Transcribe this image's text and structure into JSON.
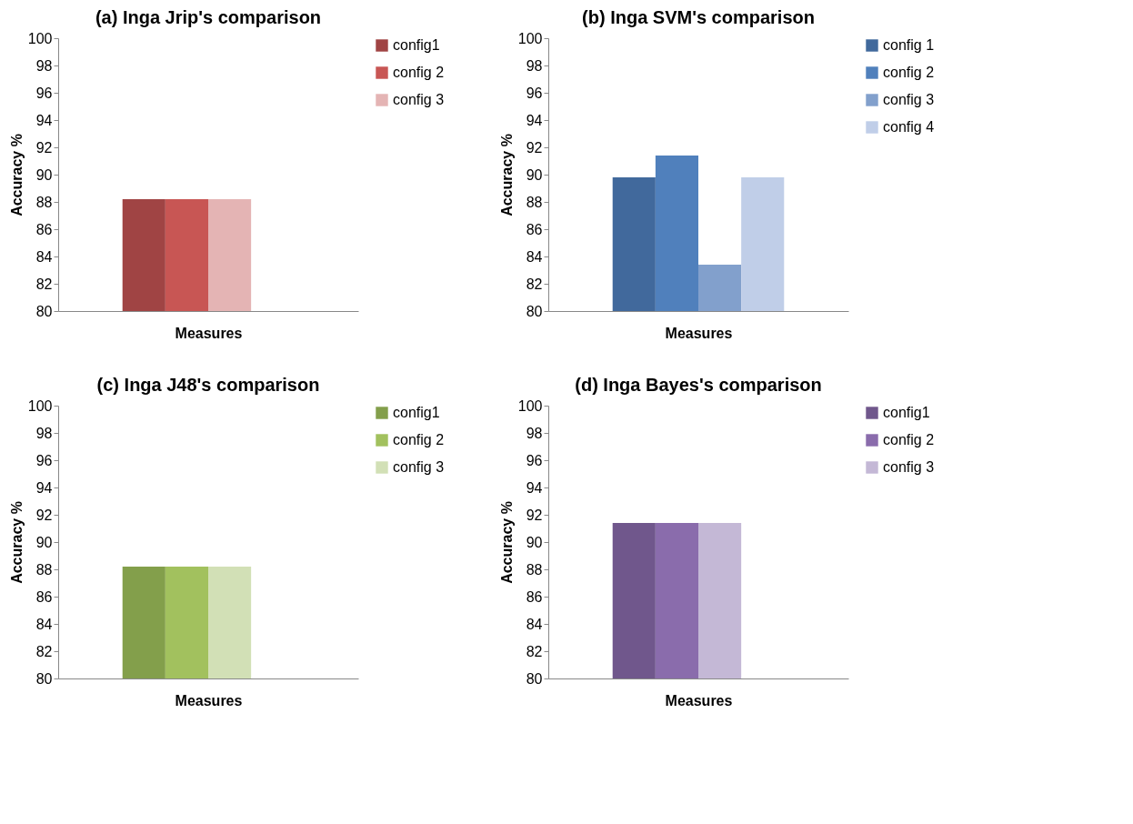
{
  "chart_data": [
    {
      "type": "bar",
      "title": "(a)  Inga Jrip's comparison",
      "xlabel": "Measures",
      "ylabel": "Accuracy %",
      "categories": [
        null
      ],
      "ylim": [
        80,
        100
      ],
      "yticks": [
        80,
        82,
        84,
        86,
        88,
        90,
        92,
        94,
        96,
        98,
        100
      ],
      "grid": false,
      "legend": "right",
      "series": [
        {
          "name": "config1",
          "color": "#a04444",
          "values": [
            88.2
          ]
        },
        {
          "name": "config 2",
          "color": "#c85654",
          "values": [
            88.2
          ]
        },
        {
          "name": "config 3",
          "color": "#e4b4b4",
          "values": [
            88.2
          ]
        }
      ]
    },
    {
      "type": "bar",
      "title": "(b) Inga SVM's comparison",
      "xlabel": "Measures",
      "ylabel": "Accuracy %",
      "categories": [
        null
      ],
      "ylim": [
        80,
        100
      ],
      "yticks": [
        80,
        82,
        84,
        86,
        88,
        90,
        92,
        94,
        96,
        98,
        100
      ],
      "grid": false,
      "legend": "right",
      "series": [
        {
          "name": "config 1",
          "color": "#41699c",
          "values": [
            89.8
          ]
        },
        {
          "name": "config 2",
          "color": "#5080bc",
          "values": [
            91.4
          ]
        },
        {
          "name": "config 3",
          "color": "#82a0cc",
          "values": [
            83.4
          ]
        },
        {
          "name": "config 4",
          "color": "#c0cee8",
          "values": [
            89.8
          ]
        }
      ]
    },
    {
      "type": "bar",
      "title": "(c) Inga J48's comparison",
      "xlabel": "Measures",
      "ylabel": "Accuracy %",
      "categories": [
        null
      ],
      "ylim": [
        80,
        100
      ],
      "yticks": [
        80,
        82,
        84,
        86,
        88,
        90,
        92,
        94,
        96,
        98,
        100
      ],
      "grid": false,
      "legend": "right",
      "series": [
        {
          "name": "config1",
          "color": "#839f4b",
          "values": [
            88.2
          ]
        },
        {
          "name": "config 2",
          "color": "#a2c15e",
          "values": [
            88.2
          ]
        },
        {
          "name": "config 3",
          "color": "#d2e0b6",
          "values": [
            88.2
          ]
        }
      ]
    },
    {
      "type": "bar",
      "title": "(d) Inga Bayes's comparison",
      "xlabel": "Measures",
      "ylabel": "Accuracy %",
      "categories": [
        null
      ],
      "ylim": [
        80,
        100
      ],
      "yticks": [
        80,
        82,
        84,
        86,
        88,
        90,
        92,
        94,
        96,
        98,
        100
      ],
      "grid": false,
      "legend": "right",
      "series": [
        {
          "name": "config1",
          "color": "#70578c",
          "values": [
            91.4
          ]
        },
        {
          "name": "config 2",
          "color": "#8a6cac",
          "values": [
            91.4
          ]
        },
        {
          "name": "config 3",
          "color": "#c4b8d6",
          "values": [
            91.4
          ]
        }
      ]
    }
  ]
}
